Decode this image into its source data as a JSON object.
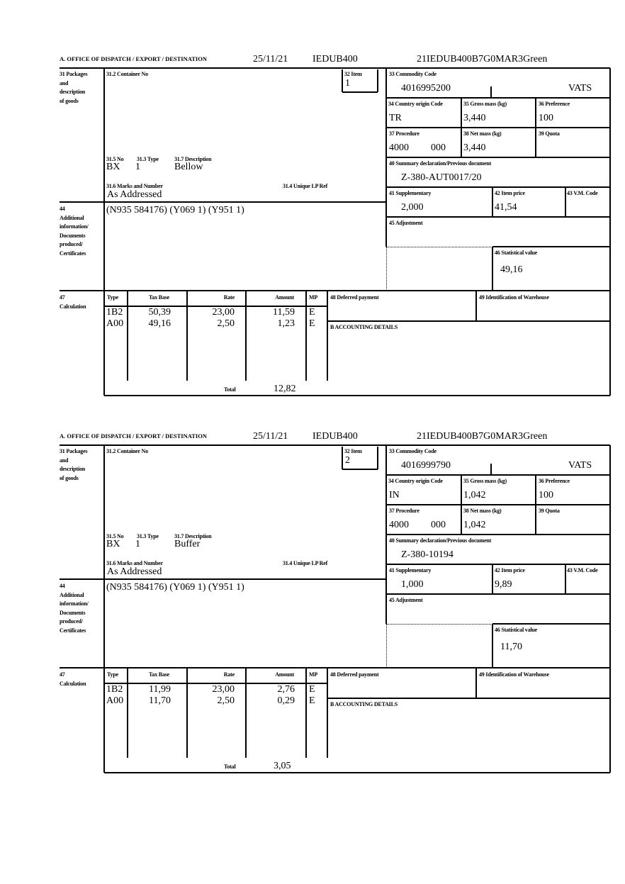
{
  "labels": {
    "office": "A. OFFICE OF DISPATCH / EXPORT / DESTINATION",
    "box31": [
      "31 Packages",
      "and",
      "description",
      "of goods"
    ],
    "container_no": "31.2 Container No",
    "item": "32 Item",
    "no": "31.5 No",
    "type": "31.3 Type",
    "description": "31.7 Description",
    "marks": "31.6 Marks and Number",
    "unique_lp": "31.4 Unique LP Ref",
    "box44": [
      "44",
      "Additional",
      "information/",
      "Documents",
      "produced/",
      "Certificates"
    ],
    "commodity_code": "33 Commodity Code",
    "country_origin": "34 Country origin Code",
    "gross_mass": "35 Gross mass (kg)",
    "preference": "36 Preference",
    "procedure": "37 Procedure",
    "net_mass": "38 Net mass (kg)",
    "quota": "39 Quota",
    "summary_decl": "40 Summary declaration/Previous document",
    "supplementary": "41 Supplementary",
    "item_price": "42 Item price",
    "vm_code": "43 V.M. Code",
    "adjustment": "45 Adjustment",
    "statistical_value": "46 Statistical value",
    "box47": [
      "47",
      "Calculation"
    ],
    "calc_headers": [
      "Type",
      "Tax Base",
      "Rate",
      "Amount",
      "MP"
    ],
    "total": "Total",
    "deferred_payment": "48 Deferred payment",
    "warehouse": "49 Identification of Warehouse",
    "accounting": "B ACCOUNTING DETAILS"
  },
  "forms": [
    {
      "date": "25/11/21",
      "office_code": "IEDUB400",
      "reference": "21IEDUB400B7G0MAR3Green",
      "item": "1",
      "no": "BX",
      "type": "1",
      "description": "Bellow",
      "marks": "As Addressed",
      "additional_info": "(N935 584176) (Y069 1) (Y951 1)",
      "commodity_code": "4016995200",
      "commodity_extra": "VATS",
      "country_origin": "TR",
      "gross_mass": "3,440",
      "preference": "100",
      "procedure": "4000",
      "procedure_extra": "000",
      "net_mass": "3,440",
      "summary_decl": "Z-380-AUT0017/20",
      "supplementary": "2,000",
      "item_price": "41,54",
      "statistical_value": "49,16",
      "calc_rows": [
        {
          "type": "1B2",
          "tax_base": "50,39",
          "rate": "23,00",
          "amount": "11,59",
          "mp": "E"
        },
        {
          "type": "A00",
          "tax_base": "49,16",
          "rate": "2,50",
          "amount": "1,23",
          "mp": "E"
        }
      ],
      "total": "12,82"
    },
    {
      "date": "25/11/21",
      "office_code": "IEDUB400",
      "reference": "21IEDUB400B7G0MAR3Green",
      "item": "2",
      "no": "BX",
      "type": "1",
      "description": "Buffer",
      "marks": "As Addressed",
      "additional_info": "(N935 584176) (Y069 1) (Y951 1)",
      "commodity_code": "4016999790",
      "commodity_extra": "VATS",
      "country_origin": "IN",
      "gross_mass": "1,042",
      "preference": "100",
      "procedure": "4000",
      "procedure_extra": "000",
      "net_mass": "1,042",
      "summary_decl": "Z-380-10194",
      "supplementary": "1,000",
      "item_price": "9,89",
      "statistical_value": "11,70",
      "calc_rows": [
        {
          "type": "1B2",
          "tax_base": "11,99",
          "rate": "23,00",
          "amount": "2,76",
          "mp": "E"
        },
        {
          "type": "A00",
          "tax_base": "11,70",
          "rate": "2,50",
          "amount": "0,29",
          "mp": "E"
        }
      ],
      "total": "3,05"
    }
  ]
}
